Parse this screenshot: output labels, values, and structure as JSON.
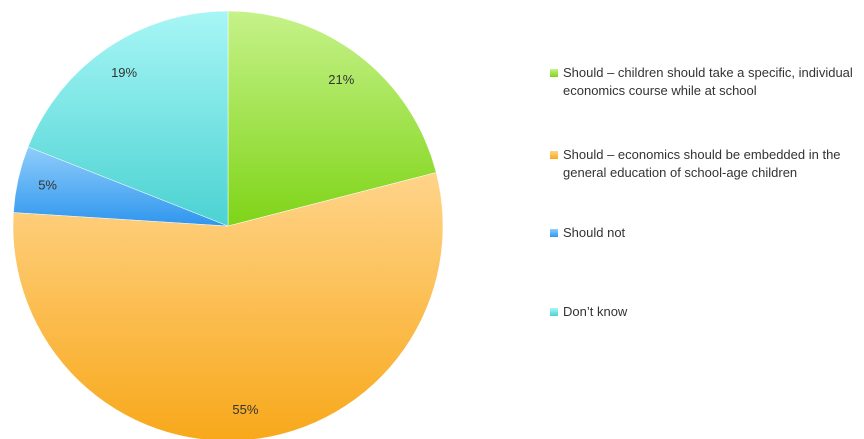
{
  "chart_data": {
    "type": "pie",
    "title": "",
    "slices": [
      {
        "label": "Should – children should take a specific, individual economics course while at school",
        "value": 21,
        "display": "21%",
        "color_light": "#c6f28a",
        "color_dark": "#7fd418"
      },
      {
        "label": "Should – economics should be embedded in the general education of school-age children",
        "value": 55,
        "display": "55%",
        "color_light": "#ffd48a",
        "color_dark": "#f8a81a"
      },
      {
        "label": "Should not",
        "value": 5,
        "display": "5%",
        "color_light": "#8fcdfb",
        "color_dark": "#2f96ee"
      },
      {
        "label": "Don’t know",
        "value": 19,
        "display": "19%",
        "color_light": "#a8f6f6",
        "color_dark": "#4cd2d2"
      }
    ],
    "legend_position": "right"
  }
}
